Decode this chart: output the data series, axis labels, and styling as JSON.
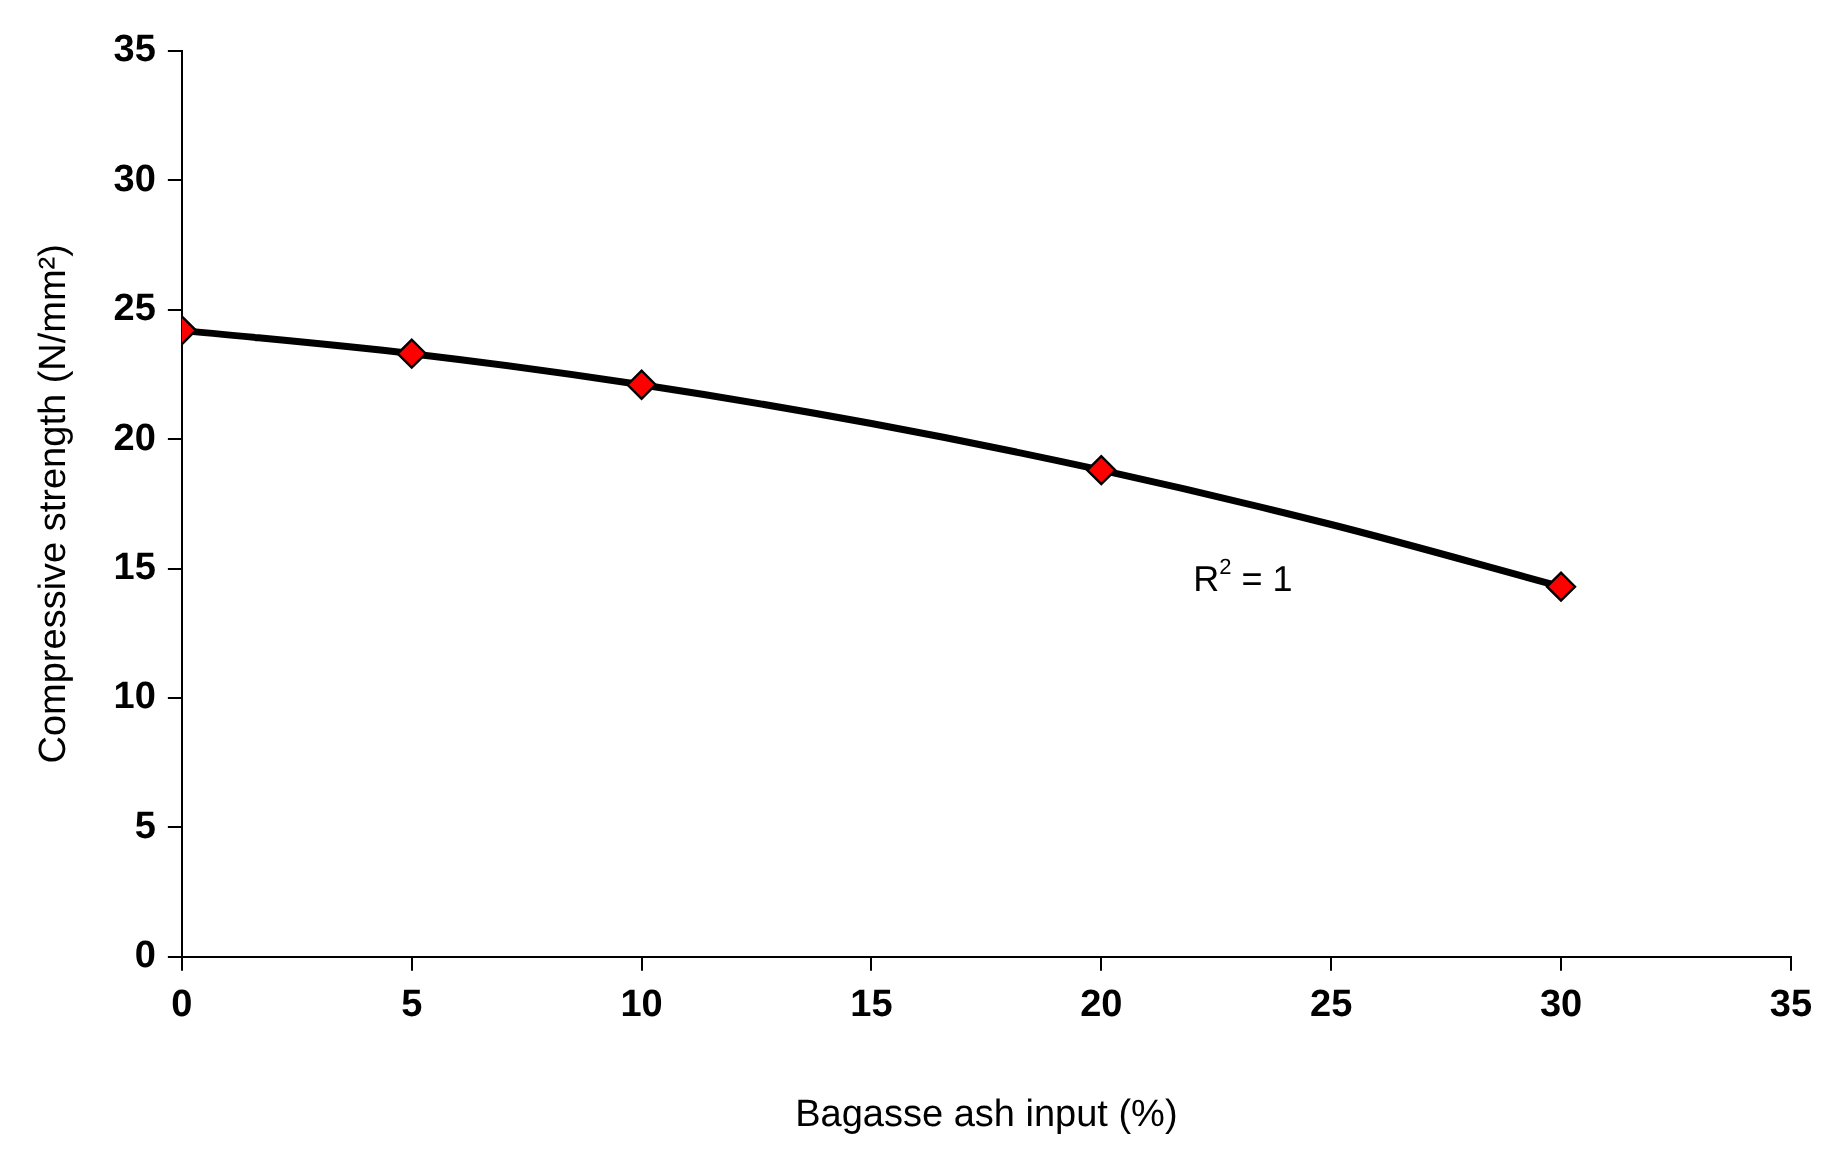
{
  "chart_data": {
    "type": "scatter",
    "xlabel": "Bagasse ash input (%)",
    "ylabel": "Compressive strength (N/mm²)",
    "xlim": [
      0,
      35
    ],
    "xticks": [
      0,
      5,
      10,
      15,
      20,
      25,
      30,
      35
    ],
    "ylim": [
      0,
      35
    ],
    "yticks": [
      0,
      5,
      10,
      15,
      20,
      25,
      30,
      35
    ],
    "grid": false,
    "legend": false,
    "series": [
      {
        "type": "scatter",
        "color": "#ff0000",
        "marker": "diamond",
        "x": [
          0,
          5,
          10,
          20,
          30
        ],
        "values": [
          24.2,
          23.3,
          22.1,
          18.8,
          14.3
        ]
      },
      {
        "type": "line",
        "color": "#000000",
        "marker": "none",
        "line_style": "solid",
        "x": [
          0,
          5,
          10,
          15,
          20,
          25,
          30
        ],
        "values": [
          24.2,
          23.3,
          22.1,
          20.6,
          18.8,
          16.7,
          14.3
        ]
      }
    ],
    "annotations": [
      "R$^{2}$ = 1"
    ]
  }
}
